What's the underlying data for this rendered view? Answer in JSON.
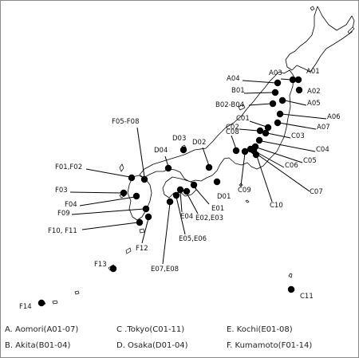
{
  "colors": {
    "land_outline": "#000000",
    "site_marker": "#000000",
    "background": "#ffffff",
    "frame": "#8a8a8a"
  },
  "legend": [
    "A. Aomori(A01-07)",
    "C .Tokyo(C01-11)",
    "E. Kochi(E01-08)",
    "B. Akita(B01-04)",
    "D. Osaka(D01-04)",
    "F. Kumamoto(F01-14)"
  ],
  "site_labels": {
    "A01": "A01",
    "A02": "A02",
    "A03": "A03",
    "A04": "A04",
    "A05": "A05",
    "A06": "A06",
    "A07": "A07",
    "B01": "B01",
    "B02_B04": "B02-B04",
    "C01": "C01",
    "C02": "C02",
    "C03": "C03",
    "C04": "C04",
    "C05": "C05",
    "C06": "C06",
    "C07": "C07",
    "C08": "C08",
    "C09": "C09",
    "C10": "C10",
    "C11": "C11",
    "D01": "D01",
    "D02": "D02",
    "D03": "D03",
    "D04": "D04",
    "E01": "E01",
    "E02_E03": "E02,E03",
    "E04": "E04",
    "E05_E06": "E05,E06",
    "E07_E08": "E07,E08",
    "F01_F02": "F01,F02",
    "F03": "F03",
    "F04": "F04",
    "F05_F08": "F05-F08",
    "F09": "F09",
    "F10_F11": "F10, F11",
    "F12": "F12",
    "F13": "F13",
    "F14": "F14"
  }
}
